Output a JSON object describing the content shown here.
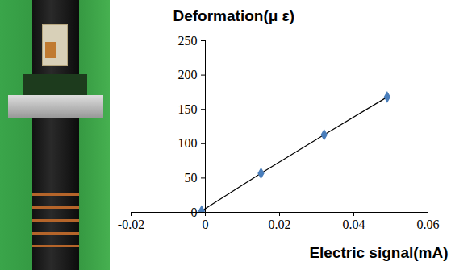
{
  "chart_data": {
    "type": "line",
    "x_label": "Electric signal(mA)",
    "y_label": "Deformation(μ ε)",
    "x": [
      -0.001,
      0.015,
      0.032,
      0.049
    ],
    "values": [
      2,
      57,
      113,
      168
    ],
    "color": "#4a7ebb",
    "marker": "diamond",
    "line_style": "solid",
    "xlim": [
      -0.02,
      0.06
    ],
    "xticks": [
      -0.02,
      0,
      0.02,
      0.04,
      0.06
    ],
    "ylim": [
      0,
      250
    ],
    "yticks": [
      0,
      50,
      100,
      150,
      200,
      250
    ],
    "grid": false
  }
}
